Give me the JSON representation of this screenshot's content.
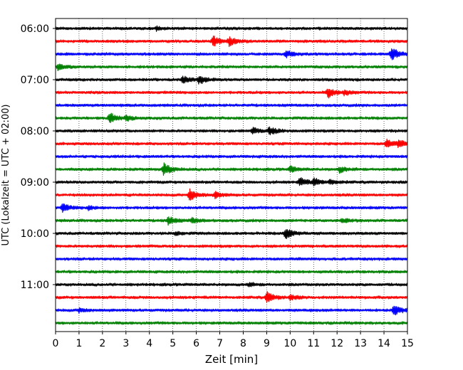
{
  "chart_data": {
    "type": "line",
    "title": "",
    "xlabel": "Zeit  [min]",
    "ylabel": "UTC (Lokalzeit = UTC + 02:00)",
    "xlim": [
      0,
      15
    ],
    "x_ticks": [
      0,
      1,
      2,
      3,
      4,
      5,
      6,
      7,
      8,
      9,
      10,
      11,
      12,
      13,
      14,
      15
    ],
    "grid": "vertical dotted at each minute",
    "trace_interval_min": 15,
    "trace_colors": [
      "#000000",
      "#ff0000",
      "#0000ff",
      "#008000"
    ],
    "y_tick_labels": [
      {
        "time": "06:00",
        "trace": 0
      },
      {
        "time": "07:00",
        "trace": 4
      },
      {
        "time": "08:00",
        "trace": 8
      },
      {
        "time": "09:00",
        "trace": 12
      },
      {
        "time": "10:00",
        "trace": 16
      },
      {
        "time": "11:00",
        "trace": 20
      }
    ],
    "traces": [
      {
        "start": "06:00",
        "events": [
          [
            4.3,
            0.3
          ]
        ]
      },
      {
        "start": "06:15",
        "events": [
          [
            6.7,
            1.0
          ],
          [
            7.4,
            0.7
          ]
        ]
      },
      {
        "start": "06:30",
        "events": [
          [
            9.8,
            0.6
          ],
          [
            14.3,
            1.2
          ]
        ]
      },
      {
        "start": "06:45",
        "events": [
          [
            0.1,
            0.5
          ]
        ]
      },
      {
        "start": "07:00",
        "events": [
          [
            5.4,
            0.6
          ],
          [
            6.1,
            0.8
          ]
        ]
      },
      {
        "start": "07:15",
        "events": [
          [
            11.6,
            0.9
          ],
          [
            12.3,
            0.4
          ]
        ]
      },
      {
        "start": "07:30",
        "events": []
      },
      {
        "start": "07:45",
        "events": [
          [
            2.3,
            0.9
          ],
          [
            3.0,
            0.4
          ]
        ]
      },
      {
        "start": "08:00",
        "events": [
          [
            8.4,
            0.5
          ],
          [
            9.1,
            0.7
          ]
        ]
      },
      {
        "start": "08:15",
        "events": [
          [
            14.1,
            0.8
          ],
          [
            14.6,
            0.5
          ]
        ]
      },
      {
        "start": "08:30",
        "events": []
      },
      {
        "start": "08:45",
        "events": [
          [
            4.6,
            1.2
          ],
          [
            10.0,
            0.5
          ],
          [
            12.1,
            0.5
          ]
        ]
      },
      {
        "start": "09:00",
        "events": [
          [
            10.4,
            0.8
          ],
          [
            11.0,
            0.6
          ],
          [
            11.7,
            0.4
          ]
        ]
      },
      {
        "start": "09:15",
        "events": [
          [
            5.7,
            1.1
          ],
          [
            6.8,
            0.5
          ]
        ]
      },
      {
        "start": "09:30",
        "events": [
          [
            0.3,
            0.7
          ],
          [
            1.4,
            0.3
          ]
        ]
      },
      {
        "start": "09:45",
        "events": [
          [
            4.8,
            0.7
          ],
          [
            5.8,
            0.4
          ],
          [
            12.2,
            0.4
          ]
        ]
      },
      {
        "start": "10:00",
        "events": [
          [
            9.8,
            1.1
          ],
          [
            5.1,
            0.3
          ]
        ]
      },
      {
        "start": "10:15",
        "events": []
      },
      {
        "start": "10:30",
        "events": []
      },
      {
        "start": "10:45",
        "events": []
      },
      {
        "start": "11:00",
        "events": [
          [
            8.2,
            0.3
          ]
        ]
      },
      {
        "start": "11:15",
        "events": [
          [
            9.0,
            1.0
          ],
          [
            10.0,
            0.4
          ]
        ]
      },
      {
        "start": "11:30",
        "events": [
          [
            1.0,
            0.4
          ],
          [
            14.4,
            1.0
          ]
        ]
      },
      {
        "start": "11:45",
        "events": []
      }
    ]
  }
}
